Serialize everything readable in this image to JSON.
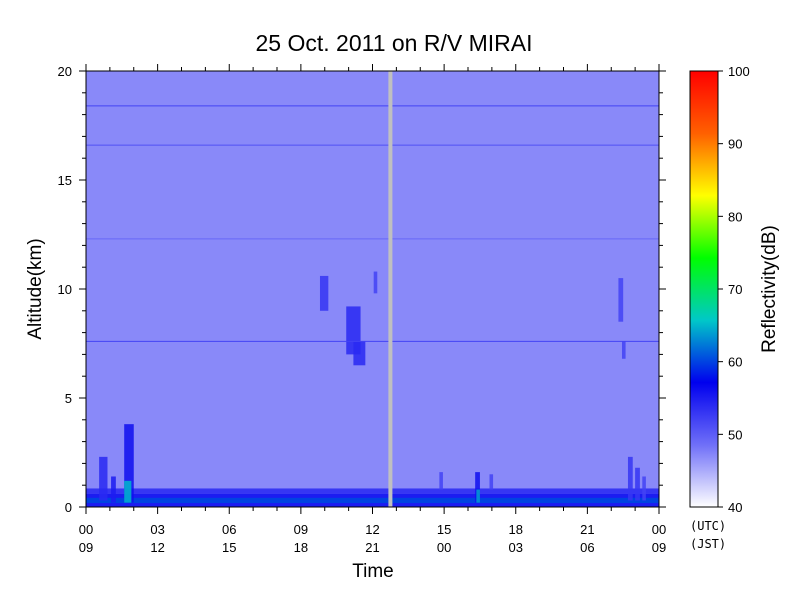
{
  "chart_data": {
    "type": "heatmap",
    "title": "25 Oct. 2011  on R/V MIRAI",
    "xlabel": "Time",
    "ylabel": "Altitude(km)",
    "colorbar_label": "Reflectivity(dB)",
    "ylim": [
      0,
      20
    ],
    "yticks": [
      "0",
      "5",
      "10",
      "15",
      "20"
    ],
    "xlim_hours_utc": [
      0,
      24
    ],
    "xticks_utc": [
      "00",
      "03",
      "06",
      "09",
      "12",
      "15",
      "18",
      "21",
      "00"
    ],
    "xticks_jst": [
      "09",
      "12",
      "15",
      "18",
      "21",
      "00",
      "03",
      "06",
      "09"
    ],
    "tick_hours": [
      0,
      3,
      6,
      9,
      12,
      15,
      18,
      21,
      24
    ],
    "x_unit_utc": "(UTC)",
    "x_unit_jst": "(JST)",
    "colorbar_range": [
      40,
      100
    ],
    "colorbar_ticks": [
      "40",
      "50",
      "60",
      "70",
      "80",
      "90",
      "100"
    ],
    "colormap": [
      "#ffffff",
      "#6f6ff8",
      "#0000ee",
      "#00c8c8",
      "#00ff00",
      "#ffff00",
      "#ff6000",
      "#ff0000"
    ],
    "background_dB": 47,
    "data_gap_hour_utc": 12.75,
    "horizontal_lines_km": [
      {
        "altitude": 18.4,
        "dB": 52
      },
      {
        "altitude": 16.6,
        "dB": 51
      },
      {
        "altitude": 12.3,
        "dB": 49
      },
      {
        "altitude": 7.6,
        "dB": 52
      }
    ],
    "surface_layers": [
      {
        "alt_from": 0.6,
        "alt_to": 0.85,
        "dB": 53
      },
      {
        "alt_from": 0.0,
        "alt_to": 0.6,
        "dB": 55
      },
      {
        "alt_from": 0.18,
        "alt_to": 0.42,
        "dB": 60
      }
    ],
    "echoes": [
      {
        "hour_from": 0.55,
        "hour_to": 0.9,
        "alt_from": 0.3,
        "alt_to": 2.3,
        "dB": 54
      },
      {
        "hour_from": 1.05,
        "hour_to": 1.25,
        "alt_from": 0.2,
        "alt_to": 1.4,
        "dB": 55
      },
      {
        "hour_from": 1.6,
        "hour_to": 2.0,
        "alt_from": 0.2,
        "alt_to": 3.8,
        "dB": 56
      },
      {
        "hour_from": 1.6,
        "hour_to": 1.9,
        "alt_from": 0.2,
        "alt_to": 1.2,
        "dB": 65
      },
      {
        "hour_from": 9.8,
        "hour_to": 10.15,
        "alt_from": 9.0,
        "alt_to": 10.6,
        "dB": 53
      },
      {
        "hour_from": 10.9,
        "hour_to": 11.5,
        "alt_from": 7.0,
        "alt_to": 9.2,
        "dB": 54
      },
      {
        "hour_from": 11.2,
        "hour_to": 11.7,
        "alt_from": 6.5,
        "alt_to": 7.6,
        "dB": 54
      },
      {
        "hour_from": 12.05,
        "hour_to": 12.2,
        "alt_from": 9.8,
        "alt_to": 10.8,
        "dB": 52
      },
      {
        "hour_from": 14.8,
        "hour_to": 14.95,
        "alt_from": 0.8,
        "alt_to": 1.6,
        "dB": 52
      },
      {
        "hour_from": 16.3,
        "hour_to": 16.5,
        "alt_from": 0.2,
        "alt_to": 1.6,
        "dB": 56
      },
      {
        "hour_from": 16.35,
        "hour_to": 16.5,
        "alt_from": 0.2,
        "alt_to": 0.8,
        "dB": 64
      },
      {
        "hour_from": 16.9,
        "hour_to": 17.05,
        "alt_from": 0.8,
        "alt_to": 1.5,
        "dB": 52
      },
      {
        "hour_from": 22.3,
        "hour_to": 22.5,
        "alt_from": 8.5,
        "alt_to": 10.5,
        "dB": 52
      },
      {
        "hour_from": 22.45,
        "hour_to": 22.6,
        "alt_from": 6.8,
        "alt_to": 7.6,
        "dB": 52
      },
      {
        "hour_from": 22.7,
        "hour_to": 22.9,
        "alt_from": 0.3,
        "alt_to": 2.3,
        "dB": 53
      },
      {
        "hour_from": 23.0,
        "hour_to": 23.2,
        "alt_from": 0.3,
        "alt_to": 1.8,
        "dB": 53
      },
      {
        "hour_from": 23.3,
        "hour_to": 23.45,
        "alt_from": 0.3,
        "alt_to": 1.4,
        "dB": 52
      }
    ],
    "grid": false,
    "legend": "colorbar-right"
  }
}
